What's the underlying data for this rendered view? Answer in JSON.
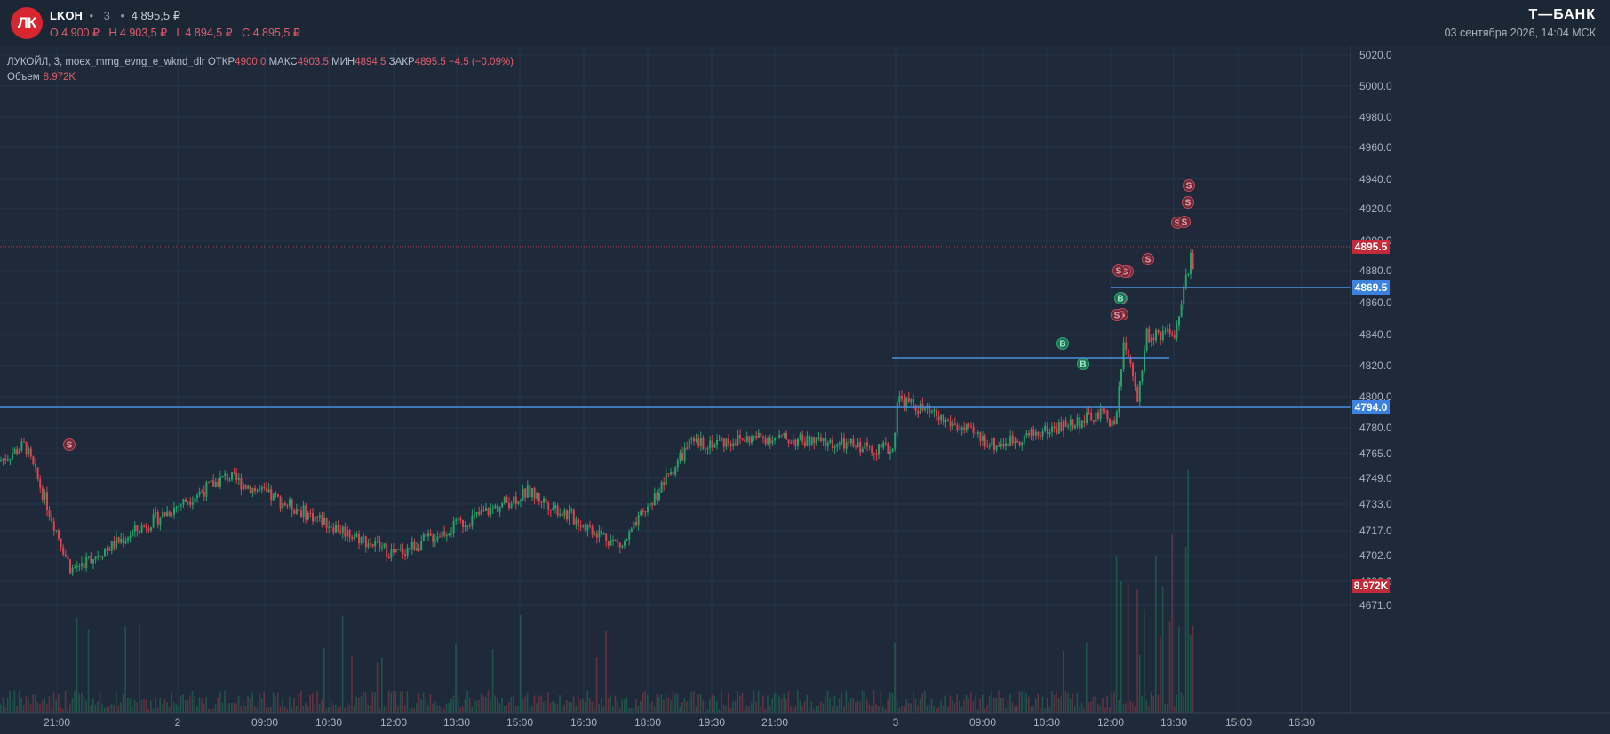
{
  "header": {
    "logo_text": "ЛК",
    "ticker": "LKOH",
    "timeframe": "3",
    "last_price": "4 895,5 ₽",
    "ohlc": {
      "open": "O 4 900 ₽",
      "high": "H 4 903,5 ₽",
      "low": "L 4 894,5 ₽",
      "close": "C 4 895,5 ₽"
    },
    "brand": "Т—БАНК",
    "datetime": "03 сентября 2026, 14:04 МСК"
  },
  "legend": {
    "series_title": "ЛУКОЙЛ, 3, moex_mrng_evng_e_wknd_dlr",
    "open_label": "ОТКР",
    "open_value": "4900.0",
    "high_label": "МАКС",
    "high_value": "4903.5",
    "low_label": "МИН",
    "low_value": "4894.5",
    "close_label": "ЗАКР",
    "close_value": "4895.5",
    "change": "−4.5 (−0.09%)",
    "volume_label": "Объем",
    "volume_value": "8.972K"
  },
  "colors": {
    "background": "#1e2a3a",
    "up": "#26a269",
    "down": "#e0434f",
    "level_line": "#4a90e2",
    "badge_price": "#c42b3a",
    "badge_level": "#3b82e0"
  },
  "chart_data": {
    "type": "candlestick",
    "timeframe_minutes": 3,
    "y_ticks": [
      "5020.0",
      "5000.0",
      "4980.0",
      "4960.0",
      "4940.0",
      "4920.0",
      "4900.0",
      "4880.0",
      "4860.0",
      "4840.0",
      "4820.0",
      "4800.0",
      "4780.0",
      "4765.0",
      "4749.0",
      "4733.0",
      "4717.0",
      "4702.0",
      "4686.0",
      "4671.0"
    ],
    "x_ticks": [
      "21:00",
      "2",
      "09:00",
      "10:30",
      "12:00",
      "13:30",
      "15:00",
      "16:30",
      "18:00",
      "19:30",
      "21:00",
      "3",
      "09:00",
      "10:30",
      "12:00",
      "13:30",
      "15:00",
      "16:30"
    ],
    "current_price": "4895.5",
    "levels": [
      {
        "label": "4869.5",
        "price": 4869.5
      },
      {
        "label": "4794.0",
        "price": 4794.0
      }
    ],
    "volume_label": "8.972K",
    "key_points": [
      {
        "x": "21:00 (day 1)",
        "y": 4795
      },
      {
        "x": "21:15 (day 1)",
        "y": 4715
      },
      {
        "x": "2, 09:30",
        "y": 4775
      },
      {
        "x": "2, 12:00",
        "y": 4725
      },
      {
        "x": "2, 15:00",
        "y": 4765
      },
      {
        "x": "2, 17:30",
        "y": 4730
      },
      {
        "x": "2, 19:00",
        "y": 4795
      },
      {
        "x": "2, 21:00",
        "y": 4800
      },
      {
        "x": "3, 07:00",
        "y": 4792
      },
      {
        "x": "3, 07:03",
        "y": 4825
      },
      {
        "x": "3, 09:00",
        "y": 4795
      },
      {
        "x": "3, 11:30",
        "y": 4815
      },
      {
        "x": "3, 12:00",
        "y": 4805
      },
      {
        "x": "3, 12:15",
        "y": 4860
      },
      {
        "x": "3, 12:45",
        "y": 4825
      },
      {
        "x": "3, 13:00",
        "y": 4865
      },
      {
        "x": "3, 13:30",
        "y": 4865
      },
      {
        "x": "3, 13:45",
        "y": 4915
      },
      {
        "x": "3, 14:04",
        "y": 4895.5
      }
    ],
    "trade_markers": [
      "S",
      "B",
      "B",
      "S",
      "S",
      "S",
      "S",
      "B",
      "S",
      "S",
      "S",
      "S",
      "S",
      "S",
      "S"
    ]
  }
}
